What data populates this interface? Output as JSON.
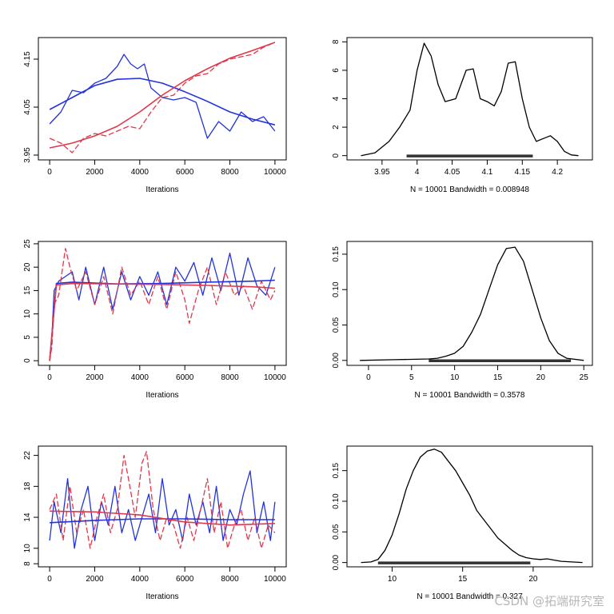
{
  "watermark": "CSDN @拓端研究室",
  "colors": {
    "chain1": "#2233dd",
    "chain2": "#e0374a",
    "density": "#000000"
  },
  "chart_data": [
    {
      "type": "line",
      "panel": "trace-1",
      "xlabel": "Iterations",
      "ylabel": "",
      "xlim": [
        -500,
        10500
      ],
      "ylim": [
        3.94,
        4.195
      ],
      "xticks": [
        0,
        2000,
        4000,
        6000,
        8000,
        10000
      ],
      "yticks": [
        3.95,
        4.05,
        4.15
      ],
      "grid": false,
      "series": [
        {
          "color": "#2233dd",
          "style": "solid",
          "x": [
            0,
            500,
            1000,
            1500,
            2000,
            2500,
            3000,
            3300,
            3600,
            3900,
            4200,
            4500,
            5000,
            5500,
            6000,
            6500,
            7000,
            7500,
            8000,
            8500,
            9000,
            9500,
            10000
          ],
          "y": [
            4.015,
            4.04,
            4.085,
            4.08,
            4.1,
            4.11,
            4.135,
            4.16,
            4.14,
            4.13,
            4.14,
            4.09,
            4.07,
            4.065,
            4.07,
            4.06,
            3.985,
            4.02,
            4.0,
            4.04,
            4.02,
            4.03,
            4.0
          ]
        },
        {
          "color": "#e0374a",
          "style": "dashed",
          "x": [
            0,
            500,
            1000,
            1500,
            2000,
            2500,
            3000,
            3500,
            4000,
            4500,
            5000,
            5500,
            6000,
            6500,
            7000,
            7500,
            8000,
            8500,
            9000,
            9500,
            10000
          ],
          "y": [
            3.985,
            3.975,
            3.955,
            3.985,
            3.995,
            3.99,
            4.0,
            4.01,
            4.005,
            4.04,
            4.07,
            4.075,
            4.1,
            4.115,
            4.12,
            4.14,
            4.15,
            4.155,
            4.16,
            4.175,
            4.185
          ]
        },
        {
          "color": "#2233dd",
          "style": "smooth",
          "x": [
            0,
            1000,
            2000,
            3000,
            4000,
            5000,
            6000,
            7000,
            8000,
            9000,
            10000
          ],
          "y": [
            4.045,
            4.07,
            4.095,
            4.108,
            4.11,
            4.1,
            4.082,
            4.062,
            4.04,
            4.025,
            4.013
          ]
        },
        {
          "color": "#e0374a",
          "style": "smooth",
          "x": [
            0,
            1000,
            2000,
            3000,
            4000,
            5000,
            6000,
            7000,
            8000,
            9000,
            10000
          ],
          "y": [
            3.965,
            3.975,
            3.99,
            4.01,
            4.04,
            4.075,
            4.105,
            4.13,
            4.152,
            4.168,
            4.185
          ]
        }
      ]
    },
    {
      "type": "line",
      "panel": "density-1",
      "note": "N = 10001   Bandwidth = 0.008948",
      "xlim": [
        3.9,
        4.25
      ],
      "ylim": [
        -0.3,
        8.3
      ],
      "xticks": [
        3.95,
        4.0,
        4.05,
        4.1,
        4.15,
        4.2
      ],
      "yticks": [
        0,
        2,
        4,
        6,
        8
      ],
      "grid": false,
      "series": [
        {
          "color": "#000000",
          "style": "solid",
          "x": [
            3.92,
            3.94,
            3.96,
            3.975,
            3.99,
            4.0,
            4.01,
            4.02,
            4.03,
            4.04,
            4.055,
            4.07,
            4.08,
            4.09,
            4.1,
            4.11,
            4.12,
            4.13,
            4.14,
            4.15,
            4.16,
            4.17,
            4.18,
            4.19,
            4.2,
            4.21,
            4.22,
            4.23
          ],
          "y": [
            0,
            0.2,
            1.0,
            2.0,
            3.2,
            6.0,
            7.9,
            7.0,
            5.0,
            3.8,
            4.0,
            6.0,
            6.1,
            4.0,
            3.8,
            3.5,
            4.5,
            6.5,
            6.6,
            4.0,
            2.0,
            1.0,
            1.2,
            1.4,
            1.0,
            0.3,
            0.05,
            0
          ]
        }
      ],
      "rug_range": [
        3.985,
        4.165
      ]
    },
    {
      "type": "line",
      "panel": "trace-2",
      "xlabel": "Iterations",
      "ylabel": "",
      "xlim": [
        -500,
        10500
      ],
      "ylim": [
        -1,
        25.5
      ],
      "xticks": [
        0,
        2000,
        4000,
        6000,
        8000,
        10000
      ],
      "yticks": [
        0,
        5,
        10,
        15,
        20,
        25
      ],
      "grid": false,
      "series": [
        {
          "color": "#2233dd",
          "style": "solid",
          "x": [
            0,
            100,
            200,
            400,
            700,
            1000,
            1300,
            1600,
            2000,
            2400,
            2800,
            3200,
            3600,
            4000,
            4400,
            4800,
            5200,
            5600,
            6000,
            6400,
            6800,
            7200,
            7600,
            8000,
            8400,
            8800,
            9200,
            9600,
            10000
          ],
          "y": [
            0,
            5,
            15,
            17,
            18,
            19,
            13,
            20,
            12,
            20,
            11,
            19,
            13,
            18,
            14,
            19,
            12,
            20,
            17,
            21,
            14,
            22,
            15,
            23,
            14,
            22,
            16,
            14,
            20
          ]
        },
        {
          "color": "#e0374a",
          "style": "dashed",
          "x": [
            0,
            100,
            200,
            400,
            700,
            900,
            1200,
            1600,
            2000,
            2400,
            2800,
            3200,
            3600,
            4000,
            4400,
            4800,
            5200,
            5600,
            6000,
            6200,
            6600,
            7000,
            7400,
            7800,
            8200,
            8600,
            9000,
            9400,
            9800,
            10000
          ],
          "y": [
            0,
            3,
            12,
            14,
            24,
            20,
            15,
            19,
            12,
            18,
            10,
            20,
            14,
            17,
            12,
            18,
            11,
            19,
            13,
            8,
            15,
            20,
            12,
            19,
            14,
            16,
            11,
            17,
            13,
            15
          ]
        },
        {
          "color": "#2233dd",
          "style": "smooth",
          "x": [
            0,
            300,
            1000,
            3000,
            5000,
            7000,
            9000,
            10000
          ],
          "y": [
            0,
            16.5,
            16.8,
            16.4,
            16.5,
            16.8,
            17.0,
            17.2
          ]
        },
        {
          "color": "#e0374a",
          "style": "smooth",
          "x": [
            0,
            300,
            1000,
            3000,
            5000,
            7000,
            9000,
            10000
          ],
          "y": [
            0,
            16.2,
            16.5,
            16.4,
            16.3,
            16.1,
            15.8,
            15.5
          ]
        }
      ]
    },
    {
      "type": "line",
      "panel": "density-2",
      "note": "N = 10001   Bandwidth = 0.3578",
      "xlim": [
        -2.5,
        26
      ],
      "ylim": [
        -0.007,
        0.168
      ],
      "xticks": [
        0,
        5,
        10,
        15,
        20,
        25
      ],
      "yticks": [
        0.0,
        0.05,
        0.1,
        0.15
      ],
      "ytick_labels": [
        "0.00",
        "0.05",
        "0.10",
        "0.15"
      ],
      "grid": false,
      "series": [
        {
          "color": "#000000",
          "style": "solid",
          "x": [
            -1,
            3,
            7,
            8,
            9,
            10,
            11,
            12,
            13,
            14,
            15,
            16,
            17,
            18,
            19,
            20,
            21,
            22,
            23,
            25
          ],
          "y": [
            0,
            0.001,
            0.002,
            0.003,
            0.006,
            0.01,
            0.02,
            0.04,
            0.065,
            0.1,
            0.135,
            0.158,
            0.16,
            0.14,
            0.1,
            0.06,
            0.028,
            0.01,
            0.003,
            0
          ]
        }
      ],
      "rug_range": [
        7,
        23.5
      ]
    },
    {
      "type": "line",
      "panel": "trace-3",
      "xlabel": "Iterations",
      "ylabel": "",
      "xlim": [
        -500,
        10500
      ],
      "ylim": [
        7.6,
        23.2
      ],
      "xticks": [
        0,
        2000,
        4000,
        6000,
        8000,
        10000
      ],
      "yticks": [
        8,
        10,
        14,
        18,
        22
      ],
      "grid": false,
      "series": [
        {
          "color": "#2233dd",
          "style": "solid",
          "x": [
            0,
            200,
            500,
            800,
            1100,
            1400,
            1700,
            2000,
            2300,
            2600,
            2900,
            3200,
            3500,
            3800,
            4100,
            4400,
            4700,
            5000,
            5300,
            5600,
            5900,
            6200,
            6500,
            6800,
            7100,
            7400,
            7700,
            8000,
            8300,
            8600,
            8900,
            9200,
            9500,
            9800,
            10000
          ],
          "y": [
            11,
            16,
            12,
            19,
            10,
            15,
            18,
            11,
            16,
            13,
            18,
            12,
            15,
            11,
            14,
            17,
            12,
            19,
            13,
            15,
            11,
            17,
            13,
            16,
            12,
            18,
            11,
            15,
            13,
            17,
            20,
            12,
            16,
            11,
            16
          ]
        },
        {
          "color": "#e0374a",
          "style": "dashed",
          "x": [
            0,
            300,
            600,
            900,
            1200,
            1500,
            1800,
            2100,
            2400,
            2700,
            3000,
            3300,
            3500,
            3800,
            4100,
            4300,
            4600,
            4900,
            5200,
            5500,
            5800,
            6100,
            6400,
            6700,
            7000,
            7300,
            7600,
            7900,
            8200,
            8500,
            8800,
            9100,
            9400,
            9700,
            10000
          ],
          "y": [
            15,
            17,
            11,
            18,
            12,
            15,
            10,
            14,
            17,
            12,
            15,
            22,
            19,
            14,
            21,
            22.5,
            15,
            11,
            14,
            13,
            10,
            14,
            11,
            15,
            19,
            12,
            16,
            10,
            13,
            15,
            11,
            14,
            10,
            13,
            12
          ]
        },
        {
          "color": "#2233dd",
          "style": "smooth",
          "x": [
            0,
            2000,
            4000,
            6000,
            8000,
            10000
          ],
          "y": [
            13.3,
            13.6,
            13.8,
            13.8,
            13.7,
            13.7
          ]
        },
        {
          "color": "#e0374a",
          "style": "smooth",
          "x": [
            0,
            2000,
            4000,
            6000,
            8000,
            10000
          ],
          "y": [
            14.8,
            14.7,
            14.3,
            13.4,
            13.0,
            13.2
          ]
        }
      ]
    },
    {
      "type": "line",
      "panel": "density-3",
      "note": "N = 10001   Bandwidth = 0.327",
      "xlim": [
        6.8,
        24.2
      ],
      "ylim": [
        -0.007,
        0.19
      ],
      "xticks": [
        10,
        15,
        20
      ],
      "yticks": [
        0.0,
        0.05,
        0.1,
        0.15
      ],
      "ytick_labels": [
        "0.00",
        "0.05",
        "0.10",
        "0.15"
      ],
      "grid": false,
      "series": [
        {
          "color": "#000000",
          "style": "solid",
          "x": [
            7.8,
            8.5,
            9,
            9.5,
            10,
            10.5,
            11,
            11.5,
            12,
            12.5,
            13,
            13.5,
            14,
            14.5,
            15,
            15.5,
            16,
            16.5,
            17,
            17.5,
            18,
            18.5,
            19,
            19.5,
            20,
            20.5,
            21,
            21.5,
            22,
            23.5
          ],
          "y": [
            0,
            0.001,
            0.005,
            0.02,
            0.045,
            0.08,
            0.12,
            0.15,
            0.172,
            0.182,
            0.185,
            0.18,
            0.165,
            0.15,
            0.13,
            0.11,
            0.085,
            0.07,
            0.055,
            0.04,
            0.03,
            0.02,
            0.012,
            0.008,
            0.006,
            0.005,
            0.006,
            0.004,
            0.002,
            0
          ]
        }
      ],
      "rug_range": [
        9,
        19.8
      ]
    }
  ]
}
